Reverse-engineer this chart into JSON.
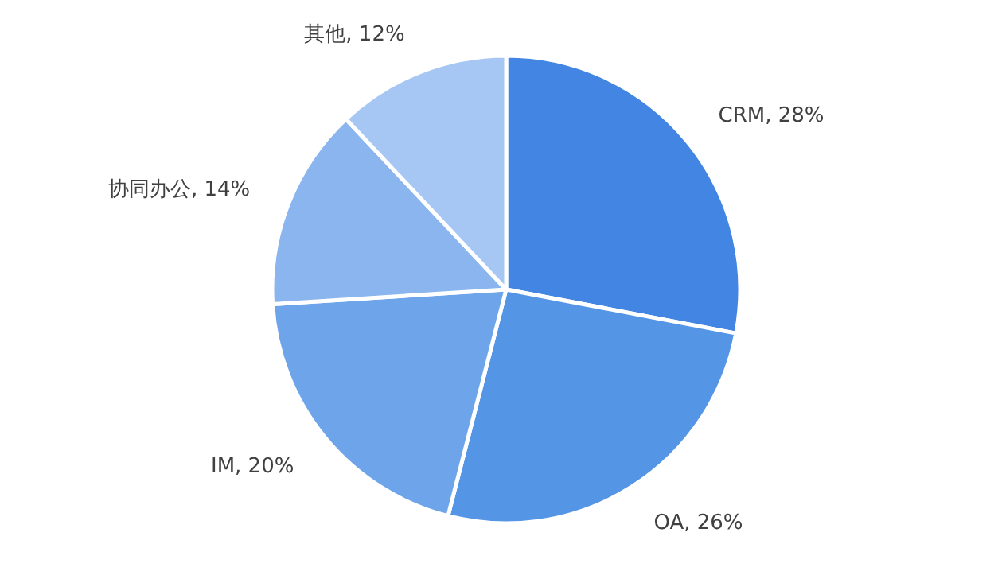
{
  "chart_data": {
    "type": "pie",
    "categories": [
      "CRM",
      "OA",
      "IM",
      "协同办公",
      "其他"
    ],
    "values": [
      28,
      26,
      20,
      14,
      12
    ],
    "value_labels": [
      "28%",
      "26%",
      "20%",
      "14%",
      "12%"
    ],
    "colors": [
      "#4285e2",
      "#5595e6",
      "#6ea5ea",
      "#8bb5ee",
      "#a6c7f3"
    ]
  }
}
